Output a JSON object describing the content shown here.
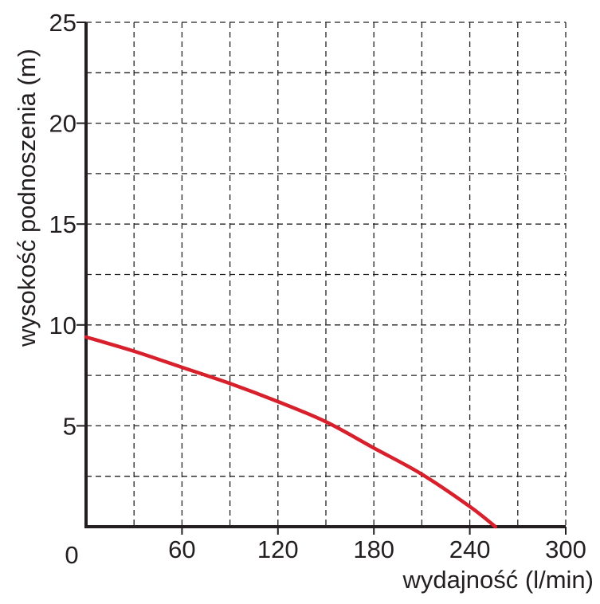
{
  "chart_data": {
    "type": "line",
    "xlabel": "wydajność (l/min)",
    "ylabel": "wysokość podnoszenia (m)",
    "xlim": [
      0,
      300
    ],
    "ylim": [
      0,
      25
    ],
    "x_ticks": [
      0,
      60,
      120,
      180,
      240,
      300
    ],
    "y_ticks": [
      5,
      10,
      15,
      20,
      25
    ],
    "x_tick_labels": [
      "0",
      "60",
      "120",
      "180",
      "240",
      "300"
    ],
    "y_tick_labels": [
      "5",
      "10",
      "15",
      "20",
      "25"
    ],
    "grid": true,
    "grid_style": "dashed",
    "x_grid_step": 30,
    "y_grid_step": 2.5,
    "line_color": "#d7202b",
    "axis_color": "#231f20",
    "series": [
      {
        "x": [
          0,
          30,
          60,
          90,
          120,
          150,
          180,
          210,
          240,
          256
        ],
        "y": [
          9.4,
          8.7,
          7.9,
          7.1,
          6.2,
          5.2,
          3.9,
          2.6,
          1.0,
          0
        ]
      }
    ]
  }
}
